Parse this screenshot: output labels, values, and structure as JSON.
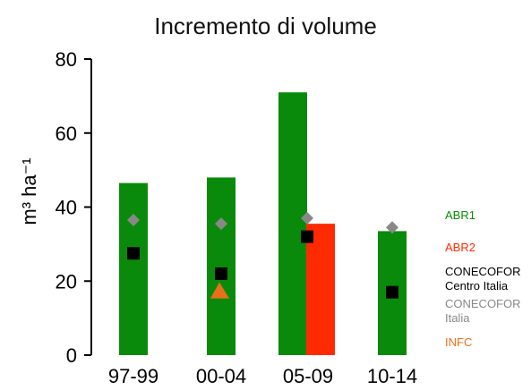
{
  "chart_data": {
    "type": "bar",
    "title": "Incremento di volume",
    "xlabel": "",
    "ylabel": "m³ ha⁻¹",
    "ylim": [
      0,
      80
    ],
    "yticks": [
      0,
      20,
      40,
      60,
      80
    ],
    "categories": [
      "97-99",
      "00-04",
      "05-09",
      "10-14"
    ],
    "grid": false,
    "legend_position": "right",
    "bars": [
      {
        "name": "ABR1",
        "color": "#0a8a0a",
        "values": [
          46.5,
          48,
          71,
          33.5
        ]
      },
      {
        "name": "ABR2",
        "color": "#ff2a00",
        "values": [
          null,
          null,
          35.5,
          null
        ]
      }
    ],
    "markers": [
      {
        "name": "CONECOFOR Centro Italia",
        "shape": "square",
        "color": "#000000",
        "values": [
          27.5,
          22,
          32,
          17
        ]
      },
      {
        "name": "CONECOFOR Italia",
        "shape": "diamond",
        "color": "#888888",
        "values": [
          36.5,
          35.5,
          37,
          34.5
        ]
      },
      {
        "name": "INFC",
        "shape": "triangle",
        "color": "#e8701a",
        "values": [
          null,
          17.5,
          null,
          null
        ]
      }
    ],
    "legend": [
      {
        "lines": [
          "ABR1"
        ],
        "color": "#0a8a0a"
      },
      {
        "lines": [
          "ABR2"
        ],
        "color": "#ff2a00"
      },
      {
        "lines": [
          "CONECOFOR",
          "Centro Italia"
        ],
        "color": "#000000"
      },
      {
        "lines": [
          "CONECOFOR",
          "Italia"
        ],
        "color": "#888888"
      },
      {
        "lines": [
          "INFC"
        ],
        "color": "#e8701a"
      }
    ]
  }
}
